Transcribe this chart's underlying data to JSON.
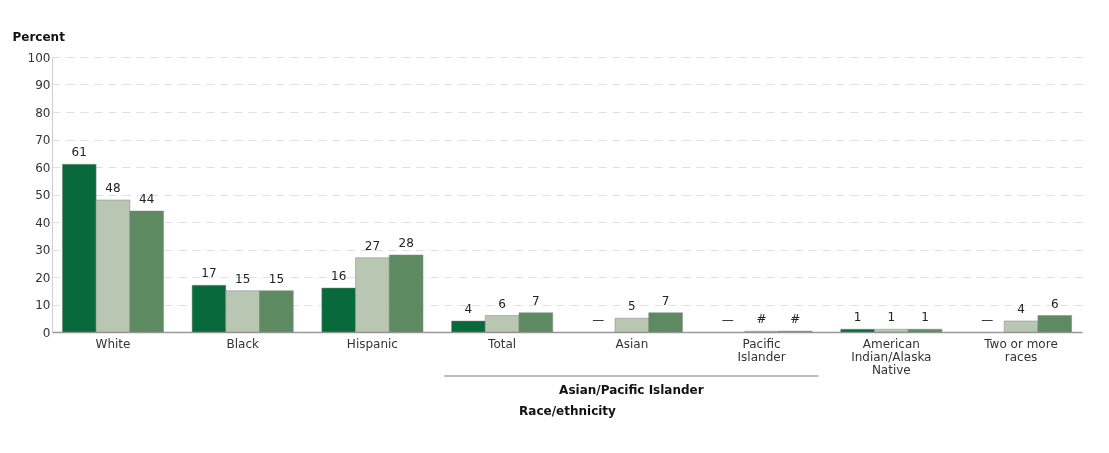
{
  "chart_data": {
    "type": "bar",
    "ylabel": "Percent",
    "xlabel": "Race/ethnicity",
    "categories": [
      "White",
      "Black",
      "Hispanic",
      "Total",
      "Asian",
      "Pacific Islander",
      "American Indian/Alaska Native",
      "Two or more races"
    ],
    "series": [
      {
        "color": "#08693a",
        "values": [
          61,
          17,
          16,
          4,
          null,
          null,
          1,
          null
        ],
        "value_labels": [
          "61",
          "17",
          "16",
          "4",
          "—",
          "—",
          "1",
          "—"
        ]
      },
      {
        "color": "#b9c6b1",
        "values": [
          48,
          15,
          27,
          6,
          5,
          0.3,
          1,
          4
        ],
        "value_labels": [
          "48",
          "15",
          "27",
          "6",
          "5",
          "#",
          "1",
          "4"
        ]
      },
      {
        "color": "#5e8a62",
        "values": [
          44,
          15,
          28,
          7,
          7,
          0.3,
          1,
          6
        ],
        "value_labels": [
          "44",
          "15",
          "28",
          "7",
          "7",
          "#",
          "1",
          "6"
        ]
      }
    ],
    "ylim": [
      0,
      100
    ],
    "yticks": [
      0,
      10,
      20,
      30,
      40,
      50,
      60,
      70,
      80,
      90,
      100
    ],
    "grid": "y",
    "legend": false,
    "annotations": [
      "Asian/Pacific Islander"
    ]
  }
}
